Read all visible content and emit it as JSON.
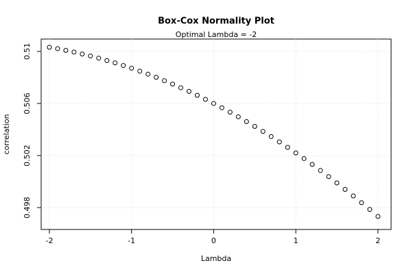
{
  "chart_data": {
    "type": "scatter",
    "title": "Box-Cox Normality Plot",
    "subtitle": "Optimal Lambda = -2",
    "x_label": "Lambda",
    "y_label": "correlation",
    "x": [
      -2,
      -1.9,
      -1.8,
      -1.7,
      -1.6,
      -1.5,
      -1.4,
      -1.3,
      -1.2,
      -1.1,
      -1,
      -0.9,
      -0.8,
      -0.7,
      -0.6,
      -0.5,
      -0.4,
      -0.3,
      -0.2,
      -0.1,
      0,
      0.1,
      0.2,
      0.3,
      0.4,
      0.5,
      0.6,
      0.7,
      0.8,
      0.9,
      1,
      1.1,
      1.2,
      1.3,
      1.4,
      1.5,
      1.6,
      1.7,
      1.8,
      1.9,
      2
    ],
    "values": [
      0.51032,
      0.51021,
      0.51008,
      0.50995,
      0.5098,
      0.50965,
      0.50948,
      0.5093,
      0.50912,
      0.50892,
      0.50871,
      0.50848,
      0.50825,
      0.50801,
      0.50775,
      0.50749,
      0.50721,
      0.50693,
      0.50663,
      0.50632,
      0.506,
      0.50567,
      0.50533,
      0.50498,
      0.50461,
      0.50424,
      0.50385,
      0.50346,
      0.50305,
      0.50263,
      0.5022,
      0.50177,
      0.50132,
      0.50085,
      0.50038,
      0.4999,
      0.4994,
      0.4989,
      0.49838,
      0.49786,
      0.49732
    ],
    "color": "#000000",
    "xlim": [
      -2.1,
      2.16
    ],
    "ylim": [
      0.49632,
      0.51095
    ],
    "xticks": [
      -2,
      -1,
      0,
      1,
      2
    ],
    "yticks": [
      0.498,
      0.502,
      0.506,
      0.51
    ],
    "grid": true
  }
}
